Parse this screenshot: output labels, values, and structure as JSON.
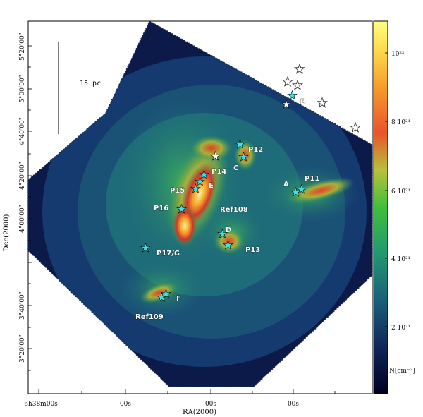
{
  "figure": {
    "dec_axis_title": "Dec(2000)",
    "ra_axis_title": "RA(2000)",
    "dec_ticks": [
      "5°20'00\"",
      "5°00'00\"",
      "4°40'00\"",
      "4°20'00\"",
      "4°00'00\"",
      "3°40'00\"",
      "3°20'00\""
    ],
    "ra_ticks": [
      "6h38m00s",
      "00s",
      "00s",
      "00s"
    ],
    "colorbar": {
      "unit": "N[cm⁻²]",
      "ticks": [
        "10²²",
        "8 10²¹",
        "6 10²¹",
        "4 10²¹",
        "2 10²¹"
      ],
      "colormap": [
        "#0b0b3a",
        "#1a3a6e",
        "#1f6f78",
        "#2aa36a",
        "#3fb83a",
        "#c9c13a",
        "#e4472a",
        "#ffe33a",
        "#fff98f"
      ]
    },
    "scale_bar_label": "15 pc",
    "labels": [
      "B",
      "P12",
      "C",
      "P14",
      "E",
      "P15",
      "A",
      "P11",
      "P16",
      "Ref108",
      "D",
      "P13",
      "P17/G",
      "F",
      "Ref109"
    ],
    "star_markers": {
      "cyan": "#3fe0e8",
      "white": "#ffffff",
      "open": "open-star"
    }
  }
}
